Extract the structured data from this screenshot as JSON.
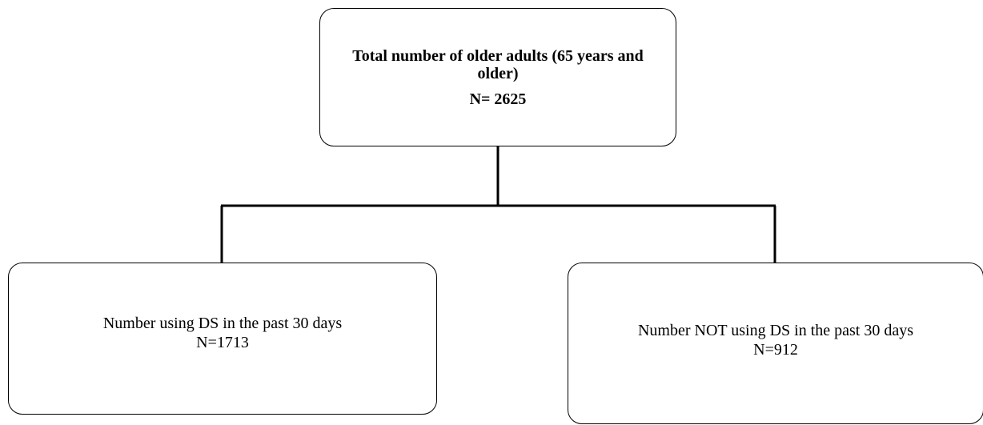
{
  "diagram": {
    "top": {
      "title": "Total number of older adults (65 years and older)",
      "n": "N= 2625"
    },
    "left": {
      "title": "Number using DS in the past 30 days",
      "n": "N=1713"
    },
    "right": {
      "title": "Number NOT using DS in the past 30 days",
      "n": "N=912"
    },
    "line_color": "#000000"
  }
}
